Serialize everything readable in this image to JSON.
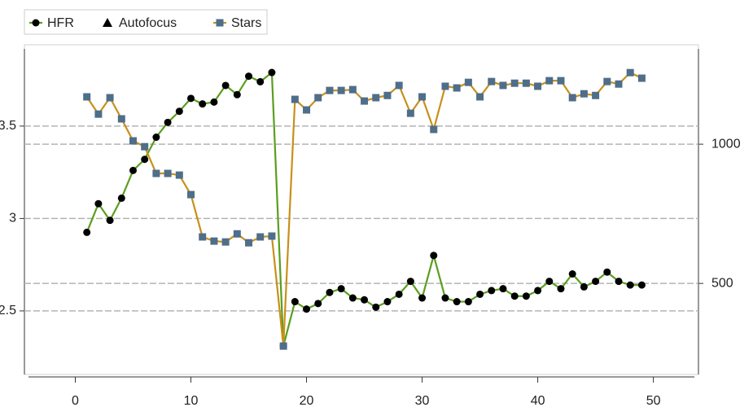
{
  "chart_data": {
    "type": "line",
    "x": [
      1,
      2,
      3,
      4,
      5,
      6,
      7,
      8,
      9,
      10,
      11,
      12,
      13,
      14,
      15,
      16,
      17,
      18,
      19,
      20,
      21,
      22,
      23,
      24,
      25,
      26,
      27,
      28,
      29,
      30,
      31,
      32,
      33,
      34,
      35,
      36,
      37,
      38,
      39,
      40,
      41,
      42,
      43,
      44,
      45,
      46,
      47,
      48,
      49
    ],
    "series": [
      {
        "name": "HFR",
        "color": "#5a9e1e",
        "marker_color": "#000000",
        "marker": "circle",
        "values": [
          2.925,
          3.08,
          2.99,
          3.11,
          3.26,
          3.32,
          3.44,
          3.52,
          3.58,
          3.65,
          3.62,
          3.63,
          3.72,
          3.67,
          3.77,
          3.74,
          3.79,
          2.31,
          2.55,
          2.51,
          2.54,
          2.6,
          2.62,
          2.57,
          2.56,
          2.52,
          2.55,
          2.59,
          2.66,
          2.57,
          2.8,
          2.57,
          2.55,
          2.55,
          2.59,
          2.61,
          2.62,
          2.58,
          2.58,
          2.61,
          2.66,
          2.62,
          2.7,
          2.63,
          2.66,
          2.71,
          2.66,
          2.64,
          2.64
        ]
      },
      {
        "name": "Autofocus",
        "color": "#000000",
        "marker_color": "#000000",
        "marker": "triangle",
        "values": [
          null,
          null,
          null,
          null,
          null,
          null,
          null,
          null,
          null,
          null,
          null,
          null,
          null,
          null,
          null,
          null,
          null,
          null,
          null,
          null,
          null,
          null,
          null,
          null,
          null,
          null,
          null,
          null,
          null,
          null,
          null,
          null,
          null,
          null,
          null,
          null,
          null,
          null,
          null,
          null,
          null,
          null,
          null,
          null,
          null,
          null,
          null,
          null,
          null
        ]
      },
      {
        "name": "Stars",
        "color": "#c8901a",
        "marker_color": "#4e6e8a",
        "marker": "square",
        "axis": "y2",
        "values": [
          1170,
          1108,
          1167,
          1091,
          1012,
          991,
          895,
          895,
          889,
          819,
          667,
          652,
          649,
          678,
          646,
          667,
          670,
          275,
          1161,
          1123,
          1167,
          1193,
          1193,
          1196,
          1155,
          1167,
          1175,
          1211,
          1111,
          1170,
          1053,
          1208,
          1202,
          1222,
          1170,
          1225,
          1211,
          1219,
          1219,
          1208,
          1228,
          1228,
          1167,
          1181,
          1175,
          1225,
          1216,
          1257,
          1237
        ]
      }
    ],
    "xlim": [
      -4.4,
      53.9
    ],
    "xticks": [
      0,
      10,
      20,
      30,
      40,
      50
    ],
    "ylim": [
      2.156,
      3.94
    ],
    "yticks": [
      2.5,
      3,
      3.5
    ],
    "y2lim": [
      173,
      1357
    ],
    "y2ticks": [
      500,
      1000
    ],
    "grid": true,
    "legend": "top-left"
  }
}
